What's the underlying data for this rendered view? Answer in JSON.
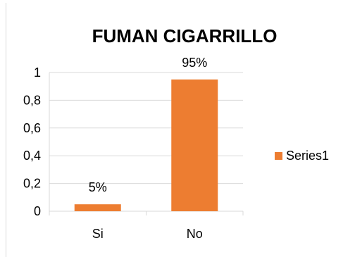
{
  "chart_data": {
    "type": "bar",
    "title": "FUMAN CIGARRILLO",
    "categories": [
      "Si",
      "No"
    ],
    "series": [
      {
        "name": "Series1",
        "values": [
          0.05,
          0.95
        ],
        "data_labels": [
          "5%",
          "95%"
        ],
        "color": "#ED7D31"
      }
    ],
    "y_ticks": [
      "0",
      "0,2",
      "0,4",
      "0,6",
      "0,8",
      "1"
    ],
    "ylim": [
      0,
      1
    ],
    "grid": true,
    "grid_color": "#d9d9d9",
    "legend": "right"
  }
}
